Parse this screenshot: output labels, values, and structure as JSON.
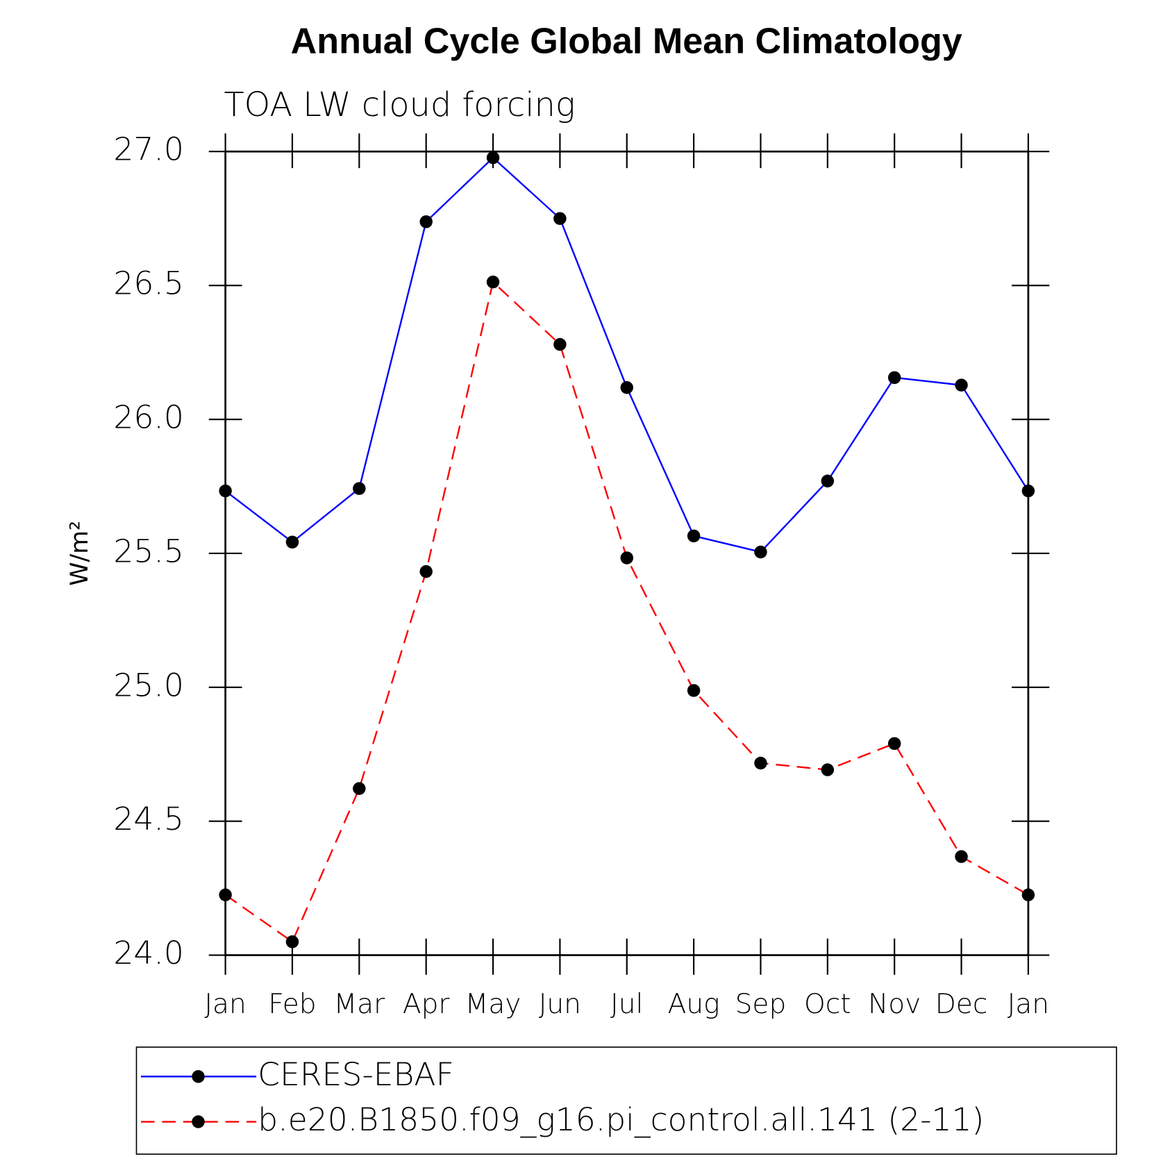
{
  "chart_data": {
    "type": "line",
    "title": "Annual Cycle Global Mean Climatology",
    "subtitle": "TOA LW cloud forcing",
    "y_label": "W/m²",
    "categories": [
      "Jan",
      "Feb",
      "Mar",
      "Apr",
      "May",
      "Jun",
      "Jul",
      "Aug",
      "Sep",
      "Oct",
      "Nov",
      "Dec",
      "Jan"
    ],
    "series": [
      {
        "name": "CERES-EBAF",
        "color": "#0000ff",
        "dashed": false,
        "values": [
          25.733,
          25.542,
          25.742,
          26.738,
          26.977,
          26.75,
          26.119,
          25.565,
          25.505,
          25.77,
          26.156,
          26.128,
          25.733
        ]
      },
      {
        "name": "b.e20.B1850.f09_g16.pi_control.all.141 (2-11)",
        "color": "#ff0000",
        "dashed": true,
        "values": [
          24.225,
          24.05,
          24.622,
          25.432,
          26.513,
          26.28,
          25.483,
          24.988,
          24.717,
          24.692,
          24.79,
          24.368,
          24.225
        ]
      }
    ],
    "ylim": [
      24.0,
      27.0
    ],
    "yticks": [
      {
        "value": 24,
        "label": "24.0"
      },
      {
        "value": 24.5,
        "label": "24.5"
      },
      {
        "value": 25,
        "label": "25.0"
      },
      {
        "value": 25.5,
        "label": "25.5"
      },
      {
        "value": 26,
        "label": "26.0"
      },
      {
        "value": 26.5,
        "label": "26.5"
      },
      {
        "value": 27,
        "label": "27.0"
      }
    ],
    "legend": "bottom"
  }
}
